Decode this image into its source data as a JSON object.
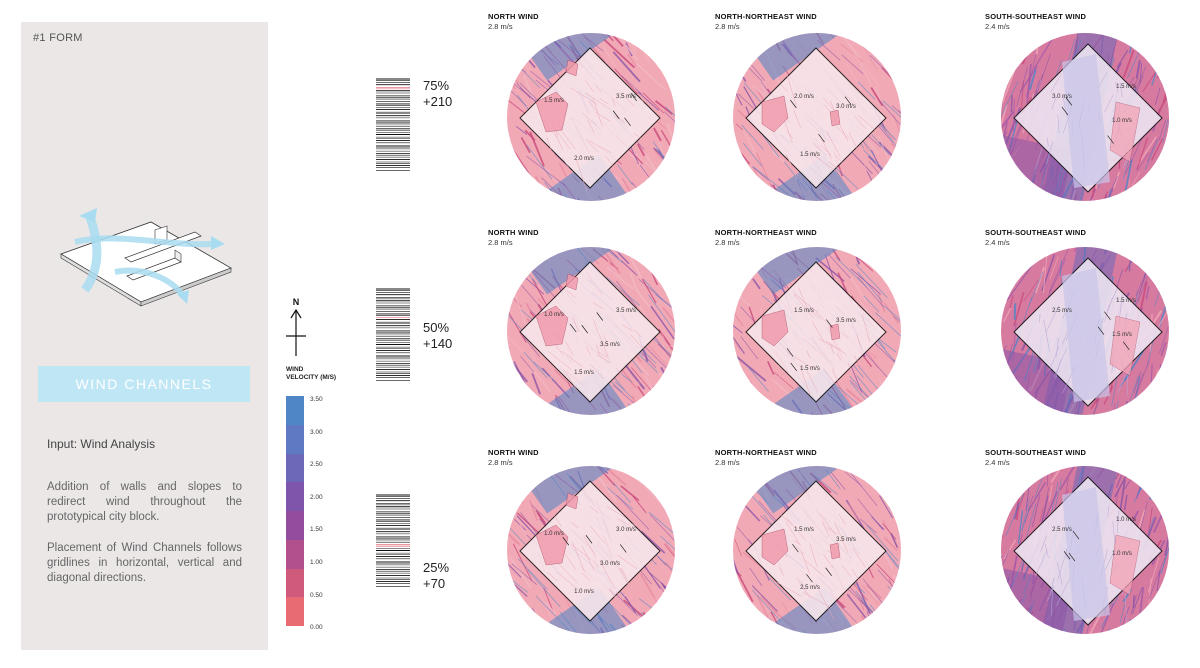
{
  "panel": {
    "form_label": "#1 FORM",
    "banner": "WIND CHANNELS",
    "input_label": "Input:",
    "input_value": "Wind Analysis",
    "description_1": "Addition of walls and slopes to redirect wind throughout the prototypical city block.",
    "description_2": "Placement of Wind Channels follows gridlines in horizontal, vertical and diagonal directions."
  },
  "north_label": "N",
  "legend": {
    "title_line1": "WIND",
    "title_line2": "VELOCITY (M/S)",
    "ticks": [
      "3.50",
      "3.00",
      "2.50",
      "2.00",
      "1.50",
      "1.00",
      "0.50",
      "0.00"
    ],
    "colors": [
      "#4f86c6",
      "#5f79c2",
      "#6d68b8",
      "#7e55aa",
      "#944c9e",
      "#b2508e",
      "#cf5a7c",
      "#e86a72"
    ]
  },
  "rows": [
    {
      "percent": "75%",
      "height": "+210",
      "cells": [
        {
          "title": "NORTH WIND",
          "speed": "2.8 m/s",
          "labels": [
            "1.5 m/s",
            "3.5 m/s",
            "2.0 m/s"
          ]
        },
        {
          "title": "NORTH-NORTHEAST WIND",
          "speed": "2.8 m/s",
          "labels": [
            "2.0 m/s",
            "3.0 m/s",
            "1.5 m/s"
          ]
        },
        {
          "title": "SOUTH-SOUTHEAST WIND",
          "speed": "2.4 m/s",
          "labels": [
            "3.0 m/s",
            "1.5 m/s",
            "1.0 m/s"
          ]
        }
      ]
    },
    {
      "percent": "50%",
      "height": "+140",
      "cells": [
        {
          "title": "NORTH WIND",
          "speed": "2.8 m/s",
          "labels": [
            "1.0 m/s",
            "3.5 m/s",
            "1.5 m/s",
            "3.5 m/s"
          ]
        },
        {
          "title": "NORTH-NORTHEAST WIND",
          "speed": "2.8 m/s",
          "labels": [
            "1.5 m/s",
            "3.5 m/s",
            "1.5 m/s"
          ]
        },
        {
          "title": "SOUTH-SOUTHEAST WIND",
          "speed": "2.4 m/s",
          "labels": [
            "2.5 m/s",
            "1.5 m/s",
            "1.5 m/s"
          ]
        }
      ]
    },
    {
      "percent": "25%",
      "height": "+70",
      "cells": [
        {
          "title": "NORTH WIND",
          "speed": "2.8 m/s",
          "labels": [
            "1.0 m/s",
            "3.0 m/s",
            "1.0 m/s",
            "3.0 m/s"
          ]
        },
        {
          "title": "NORTH-NORTHEAST WIND",
          "speed": "2.8 m/s",
          "labels": [
            "1.5 m/s",
            "3.5 m/s",
            "2.5 m/s"
          ]
        },
        {
          "title": "SOUTH-SOUTHEAST WIND",
          "speed": "2.4 m/s",
          "labels": [
            "2.5 m/s",
            "1.0 m/s",
            "1.0 m/s"
          ]
        }
      ]
    }
  ]
}
